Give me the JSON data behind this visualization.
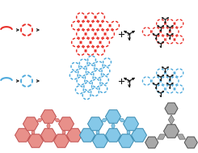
{
  "red_color": "#E8302A",
  "blue_color": "#4FAADC",
  "black_color": "#1a1a1a",
  "pink_fill": "#E8908A",
  "pink_edge": "#C05050",
  "lblue_fill": "#85C8E8",
  "lblue_edge": "#3A8AB0",
  "gray_fill": "#A8A8A8",
  "gray_edge": "#505050",
  "bg_color": "#FFFFFF",
  "fig_width": 2.45,
  "fig_height": 1.89,
  "dpi": 100
}
